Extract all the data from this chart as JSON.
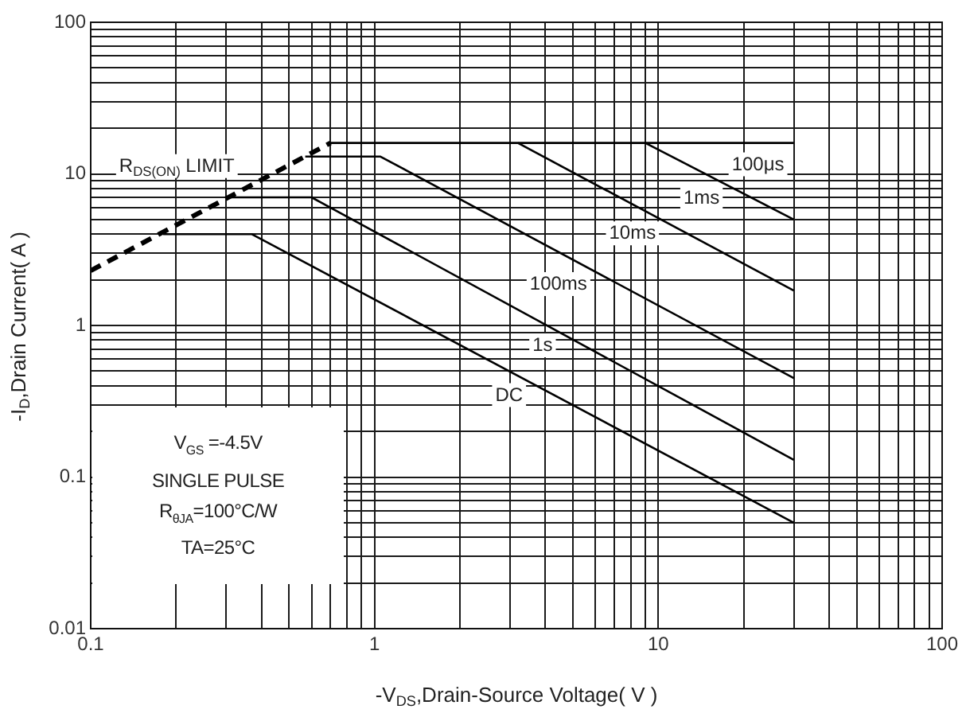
{
  "chart_data": {
    "type": "line",
    "xlabel": "-V$_{DS}$,Drain-Source Voltage( V )",
    "ylabel": "-I$_{D}$,Drain Current( A )",
    "log": "xy",
    "xlim": [
      0.1,
      100
    ],
    "ylim": [
      0.01,
      100
    ],
    "xticks": [
      0.1,
      1,
      10,
      100
    ],
    "yticks": [
      0.01,
      0.1,
      1,
      10,
      100
    ],
    "grid": true,
    "marker": "none",
    "series": [
      {
        "name": "R$_{DS(ON)}$ LIMIT",
        "color": "#000000",
        "line_style": "dashed",
        "x": [
          0.1,
          0.7
        ],
        "values": [
          2.3,
          16
        ]
      },
      {
        "name": "100μs",
        "color": "#000000",
        "x": [
          0.7,
          30
        ],
        "values": [
          16,
          16
        ]
      },
      {
        "name": "1ms",
        "color": "#000000",
        "x": [
          9,
          30
        ],
        "values": [
          16,
          5
        ]
      },
      {
        "name": "10ms",
        "color": "#000000",
        "x": [
          3.2,
          30
        ],
        "values": [
          16,
          1.7
        ]
      },
      {
        "name": "100ms",
        "color": "#000000",
        "x": [
          0.57,
          1.05,
          30
        ],
        "values": [
          13,
          13,
          0.45
        ]
      },
      {
        "name": "1s",
        "color": "#000000",
        "x": [
          0.3,
          0.6,
          30
        ],
        "values": [
          7,
          7,
          0.13
        ]
      },
      {
        "name": "DC",
        "color": "#000000",
        "x": [
          0.18,
          0.37,
          30
        ],
        "values": [
          4,
          4,
          0.05
        ]
      }
    ],
    "annotations": [
      "V$_{GS}$ =-4.5V",
      "SINGLE PULSE",
      "R$_{θJA}$=100°C/W",
      "TA=25°C"
    ]
  }
}
